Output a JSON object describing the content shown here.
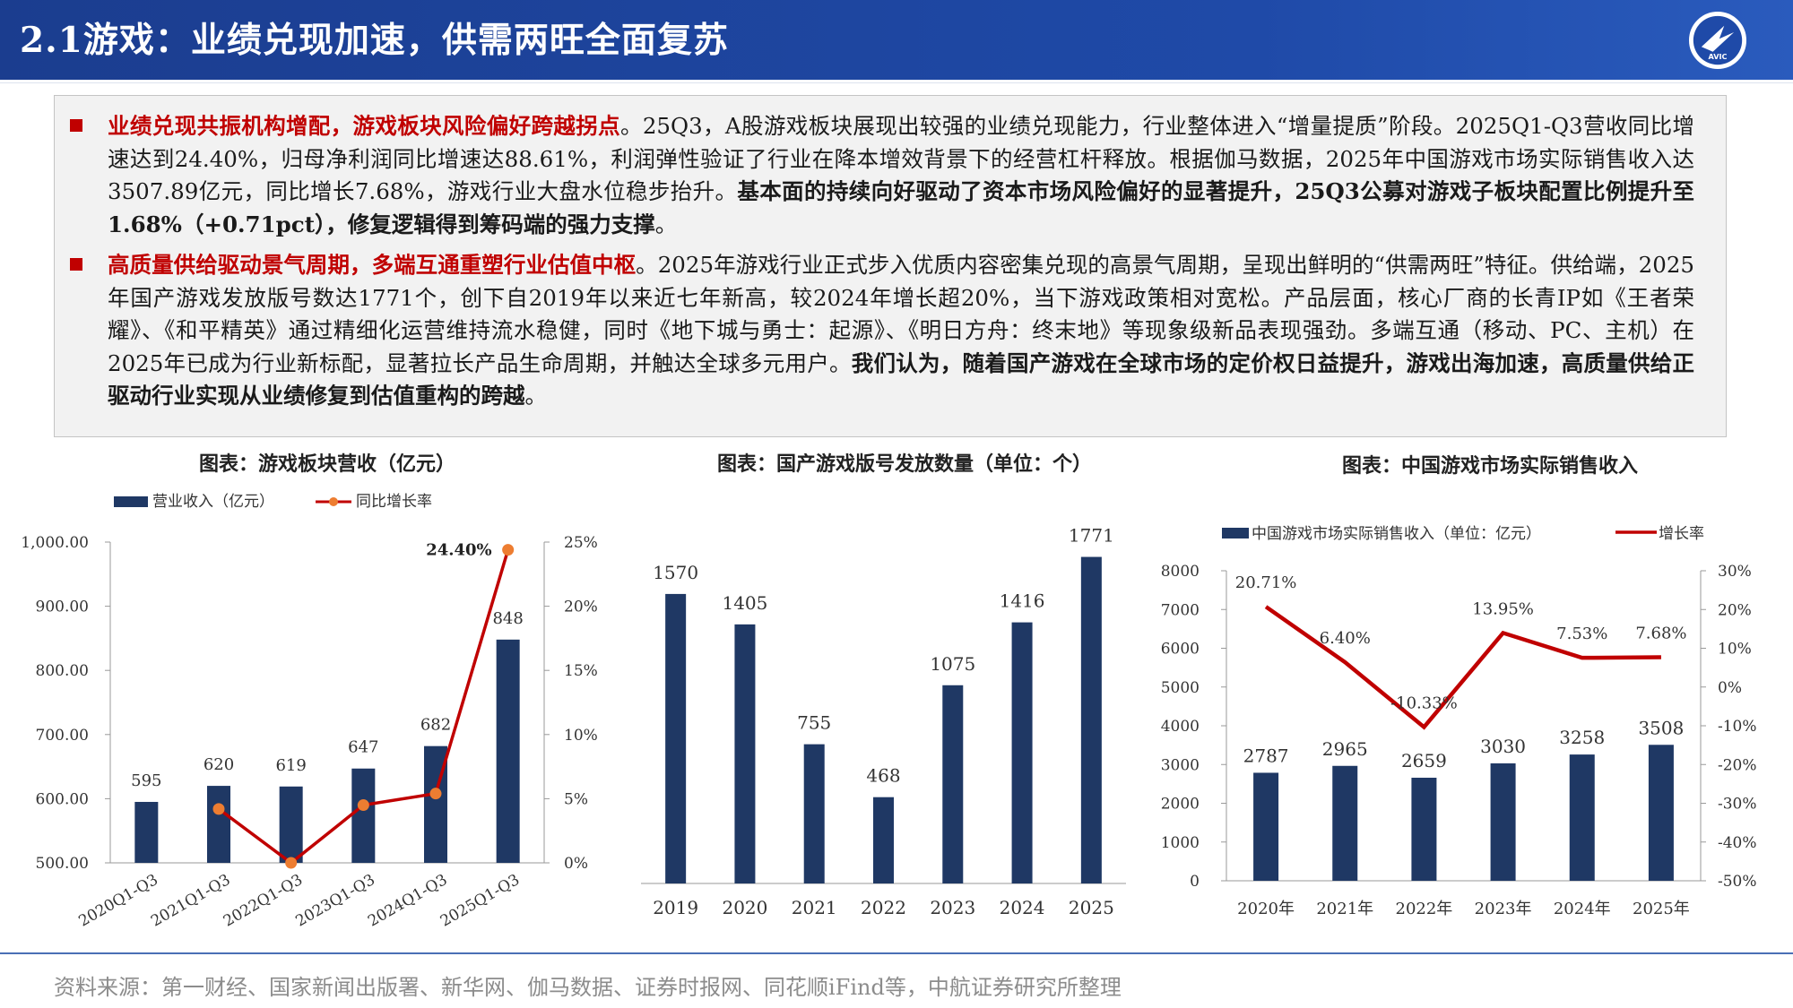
{
  "header": {
    "title": "2.1游戏：业绩兑现加速，供需两旺全面复苏",
    "logo_text": "AVIC"
  },
  "para1": {
    "lead": "业绩兑现共振机构增配，游戏板块风险偏好跨越拐点",
    "body": "。25Q3，A股游戏板块展现出较强的业绩兑现能力，行业整体进入“增量提质”阶段。2025Q1-Q3营收同比增速达到24.40%，归母净利润同比增速达88.61%，利润弹性验证了行业在降本增效背景下的经营杠杆释放。根据伽马数据，2025年中国游戏市场实际销售收入达3507.89亿元，同比增长7.68%，游戏行业大盘水位稳步抬升。",
    "conclusion": "基本面的持续向好驱动了资本市场风险偏好的显著提升，25Q3公募对游戏子板块配置比例提升至1.68%（+0.71pct），修复逻辑得到筹码端的强力支撑",
    "end": "。"
  },
  "para2": {
    "lead": "高质量供给驱动景气周期，多端互通重塑行业估值中枢",
    "body": "。2025年游戏行业正式步入优质内容密集兑现的高景气周期，呈现出鲜明的“供需两旺”特征。供给端，2025年国产游戏发放版号数达1771个，创下自2019年以来近七年新高，较2024年增长超20%，当下游戏政策相对宽松。产品层面，核心厂商的长青IP如《王者荣耀》、《和平精英》通过精细化运营维持流水稳健，同时《地下城与勇士：起源》、《明日方舟：终末地》等现象级新品表现强劲。多端互通（移动、PC、主机）在2025年已成为行业新标配，显著拉长产品生命周期，并触达全球多元用户。",
    "conclusion": "我们认为，随着国产游戏在全球市场的定价权日益提升，游戏出海加速，高质量供给正驱动行业实现从业绩修复到估值重构的跨越",
    "end": "。"
  },
  "chart_titles": {
    "c1": "图表：游戏板块营收（亿元）",
    "c2": "图表：国产游戏版号发放数量（单位：个）",
    "c3": "图表：中国游戏市场实际销售收入"
  },
  "chart_data": [
    {
      "type": "bar",
      "title": "图表：游戏板块营收（亿元）",
      "categories": [
        "2020Q1-Q3",
        "2021Q1-Q3",
        "2022Q1-Q3",
        "2023Q1-Q3",
        "2024Q1-Q3",
        "2025Q1-Q3"
      ],
      "series": [
        {
          "name": "营业收入（亿元）",
          "type": "bar",
          "values": [
            595,
            620,
            619,
            647,
            682,
            848
          ],
          "axis": "left"
        },
        {
          "name": "同比增长率",
          "type": "line",
          "values": [
            null,
            4.2,
            0.0,
            4.5,
            5.4,
            24.4
          ],
          "axis": "right"
        }
      ],
      "left_axis": {
        "ylim": [
          500,
          1000
        ],
        "ticks": [
          "500.00",
          "600.00",
          "700.00",
          "800.00",
          "900.00",
          "1,000.00"
        ]
      },
      "right_axis": {
        "ylim": [
          0,
          25
        ],
        "ticks": [
          "0%",
          "5%",
          "10%",
          "15%",
          "20%",
          "25%"
        ]
      },
      "point_labels": {
        "last_rate": "24.40%"
      },
      "legend_position": "top-left",
      "colors": {
        "bar": "#1f3864",
        "line": "#c00000",
        "marker": "#ed7d31"
      }
    },
    {
      "type": "bar",
      "title": "图表：国产游戏版号发放数量（单位：个）",
      "categories": [
        "2019",
        "2020",
        "2021",
        "2022",
        "2023",
        "2024",
        "2025"
      ],
      "values": [
        1570,
        1405,
        755,
        468,
        1075,
        1416,
        1771
      ],
      "ylim": [
        0,
        1900
      ],
      "colors": {
        "bar": "#1f3864"
      }
    },
    {
      "type": "bar",
      "title": "图表：中国游戏市场实际销售收入",
      "categories": [
        "2020年",
        "2021年",
        "2022年",
        "2023年",
        "2024年",
        "2025年"
      ],
      "series": [
        {
          "name": "中国游戏市场实际销售收入（单位：亿元）",
          "type": "bar",
          "values": [
            2787,
            2965,
            2659,
            3030,
            3258,
            3508
          ],
          "axis": "left"
        },
        {
          "name": "增长率",
          "type": "line",
          "values": [
            20.71,
            6.4,
            -10.33,
            13.95,
            7.53,
            7.68
          ],
          "axis": "right",
          "labels": [
            "20.71%",
            "6.40%",
            "-10.33%",
            "13.95%",
            "7.53%",
            "7.68%"
          ]
        }
      ],
      "left_axis": {
        "ylim": [
          0,
          8000
        ],
        "ticks": [
          "0",
          "1000",
          "2000",
          "3000",
          "4000",
          "5000",
          "6000",
          "7000",
          "8000"
        ]
      },
      "right_axis": {
        "ylim": [
          -50,
          30
        ],
        "ticks": [
          "-50%",
          "-40%",
          "-30%",
          "-20%",
          "-10%",
          "0%",
          "10%",
          "20%",
          "30%"
        ]
      },
      "legend_position": "top",
      "colors": {
        "bar": "#1f3864",
        "line": "#c00000"
      }
    }
  ],
  "footer": {
    "source": "资料来源：第一财经、国家新闻出版署、新华网、伽马数据、证券时报网、同花顺iFind等，中航证券研究所整理"
  }
}
